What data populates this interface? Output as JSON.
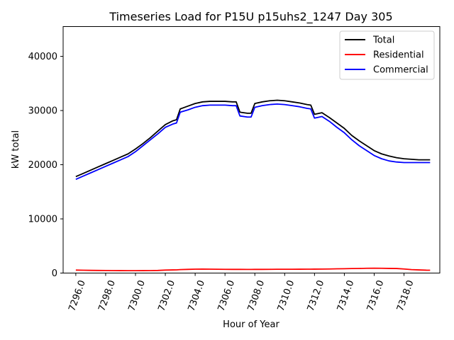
{
  "chart_data": {
    "type": "line",
    "title": "Timeseries Load for P15U p15uhs2_1247  Day 305",
    "xlabel": "Hour of Year",
    "ylabel": "kW total",
    "xlim": [
      7295.15,
      7320.4
    ],
    "ylim": [
      0,
      45500
    ],
    "x_ticks": [
      7296,
      7298,
      7300,
      7302,
      7304,
      7306,
      7308,
      7310,
      7312,
      7314,
      7316,
      7318
    ],
    "x_tick_labels": [
      "7296.0",
      "7298.0",
      "7300.0",
      "7302.0",
      "7304.0",
      "7306.0",
      "7308.0",
      "7310.0",
      "7312.0",
      "7314.0",
      "7316.0",
      "7318.0"
    ],
    "y_ticks": [
      0,
      10000,
      20000,
      30000,
      40000
    ],
    "y_tick_labels": [
      "0",
      "10000",
      "20000",
      "30000",
      "40000"
    ],
    "legend_position": "top-right",
    "x": [
      7296,
      7296.5,
      7297,
      7297.5,
      7298,
      7298.5,
      7299,
      7299.5,
      7300,
      7300.5,
      7301,
      7301.5,
      7302,
      7302.5,
      7302.75,
      7303,
      7303.5,
      7304,
      7304.5,
      7305,
      7305.5,
      7306,
      7306.5,
      7306.75,
      7307,
      7307.5,
      7307.75,
      7308,
      7308.5,
      7309,
      7309.5,
      7310,
      7310.5,
      7311,
      7311.5,
      7311.75,
      7312,
      7312.5,
      7313,
      7313.5,
      7314,
      7314.5,
      7315,
      7315.5,
      7316,
      7316.5,
      7317,
      7317.5,
      7318,
      7318.5,
      7319,
      7319.5,
      7319.75
    ],
    "series": [
      {
        "name": "Total",
        "color": "#000000",
        "values": [
          17800,
          18400,
          19000,
          19600,
          20200,
          20800,
          21400,
          22000,
          22900,
          23900,
          25000,
          26200,
          27400,
          28100,
          28300,
          30300,
          30800,
          31300,
          31600,
          31700,
          31700,
          31700,
          31600,
          31600,
          29700,
          29500,
          29500,
          31300,
          31600,
          31800,
          31900,
          31800,
          31600,
          31400,
          31100,
          31000,
          29300,
          29600,
          28700,
          27700,
          26700,
          25400,
          24400,
          23500,
          22600,
          22000,
          21600,
          21300,
          21100,
          21000,
          20900,
          20900,
          20900
        ]
      },
      {
        "name": "Residential",
        "color": "#ff0000",
        "values": [
          550,
          520,
          500,
          480,
          470,
          460,
          450,
          440,
          440,
          450,
          460,
          480,
          550,
          580,
          590,
          640,
          680,
          720,
          730,
          720,
          700,
          690,
          680,
          680,
          680,
          670,
          670,
          680,
          680,
          690,
          700,
          700,
          700,
          710,
          720,
          720,
          730,
          740,
          750,
          780,
          800,
          830,
          850,
          880,
          900,
          880,
          860,
          840,
          750,
          640,
          580,
          530,
          520
        ]
      },
      {
        "name": "Commercial",
        "color": "#0000ff",
        "values": [
          17300,
          17900,
          18500,
          19100,
          19700,
          20300,
          20900,
          21500,
          22400,
          23500,
          24600,
          25700,
          26900,
          27500,
          27700,
          29700,
          30100,
          30600,
          30900,
          31000,
          31000,
          31000,
          30900,
          30900,
          29000,
          28800,
          28800,
          30600,
          30900,
          31100,
          31200,
          31100,
          30900,
          30700,
          30400,
          30300,
          28600,
          28900,
          28000,
          26900,
          25900,
          24600,
          23500,
          22600,
          21700,
          21100,
          20700,
          20500,
          20400,
          20400,
          20400,
          20400,
          20400
        ]
      }
    ]
  }
}
